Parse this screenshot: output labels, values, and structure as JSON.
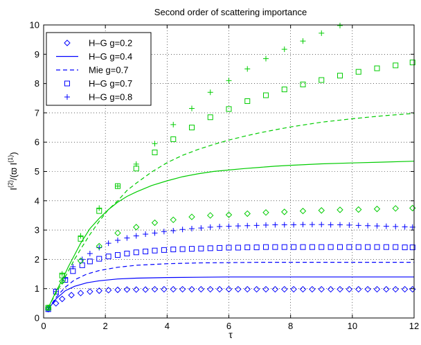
{
  "chart_data": {
    "type": "line",
    "title": "Second order of scattering importance",
    "xlabel": "τ",
    "ylabel": "I(2)/(ϖ I(1))",
    "xlim": [
      0,
      12
    ],
    "ylim": [
      0,
      10
    ],
    "xticks": [
      0,
      2,
      4,
      6,
      8,
      10,
      12
    ],
    "yticks": [
      0,
      1,
      2,
      3,
      4,
      5,
      6,
      7,
      8,
      9,
      10
    ],
    "grid": true,
    "legend_position": "top-left",
    "legend": [
      {
        "label": "H–G g=0.2",
        "marker": "diamond",
        "line": "none",
        "color": "#0000ff"
      },
      {
        "label": "H–G g=0.4",
        "marker": "none",
        "line": "solid",
        "color": "#0000ff"
      },
      {
        "label": "Mie g=0.7",
        "marker": "none",
        "line": "dashed",
        "color": "#0000ff"
      },
      {
        "label": "H–G g=0.7",
        "marker": "square",
        "line": "none",
        "color": "#0000ff"
      },
      {
        "label": "H–G g=0.8",
        "marker": "plus",
        "line": "none",
        "color": "#0000ff"
      }
    ],
    "series": [
      {
        "name": "H–G g=0.2",
        "group": "thin",
        "color": "#0000ff",
        "style": "diamond",
        "x": [
          0.15,
          0.4,
          0.6,
          0.9,
          1.2,
          1.5,
          1.8,
          2.1,
          2.4,
          2.7,
          3.0,
          3.3,
          3.6,
          3.9,
          4.2,
          4.5,
          4.8,
          5.1,
          5.4,
          5.7,
          6.0,
          6.3,
          6.6,
          6.9,
          7.2,
          7.5,
          7.8,
          8.1,
          8.4,
          8.7,
          9.0,
          9.3,
          9.6,
          9.9,
          10.2,
          10.5,
          10.8,
          11.1,
          11.4,
          11.7,
          11.95
        ],
        "y": [
          0.3,
          0.5,
          0.65,
          0.78,
          0.85,
          0.9,
          0.93,
          0.95,
          0.96,
          0.97,
          0.97,
          0.97,
          0.98,
          0.98,
          0.98,
          0.98,
          0.98,
          0.98,
          0.98,
          0.98,
          0.98,
          0.98,
          0.98,
          0.98,
          0.98,
          0.98,
          0.98,
          0.98,
          0.98,
          0.98,
          0.98,
          0.98,
          0.98,
          0.98,
          0.98,
          0.98,
          0.98,
          0.98,
          0.98,
          0.98,
          0.98
        ]
      },
      {
        "name": "H–G g=0.4",
        "group": "thin",
        "color": "#0000ff",
        "style": "solid",
        "x": [
          0.15,
          0.4,
          0.7,
          1.0,
          1.4,
          1.8,
          2.4,
          3.0,
          4.0,
          5.0,
          6.0,
          7.0,
          8.0,
          9.0,
          10.0,
          11.0,
          12.0
        ],
        "y": [
          0.3,
          0.65,
          0.93,
          1.08,
          1.2,
          1.27,
          1.33,
          1.36,
          1.38,
          1.39,
          1.4,
          1.4,
          1.4,
          1.4,
          1.4,
          1.4,
          1.4
        ]
      },
      {
        "name": "Mie g=0.7",
        "group": "thin",
        "color": "#0000ff",
        "style": "dashed",
        "x": [
          0.15,
          0.4,
          0.7,
          1.0,
          1.4,
          1.8,
          2.4,
          3.0,
          4.0,
          5.0,
          6.0,
          7.0,
          8.0,
          9.0,
          10.0,
          11.0,
          12.0
        ],
        "y": [
          0.3,
          0.7,
          1.05,
          1.3,
          1.5,
          1.62,
          1.73,
          1.8,
          1.85,
          1.88,
          1.89,
          1.9,
          1.9,
          1.9,
          1.9,
          1.9,
          1.9
        ]
      },
      {
        "name": "H–G g=0.7",
        "group": "thin",
        "color": "#0000ff",
        "style": "square",
        "x": [
          0.15,
          0.4,
          0.7,
          0.95,
          1.25,
          1.5,
          1.8,
          2.1,
          2.4,
          2.7,
          3.0,
          3.3,
          3.6,
          3.9,
          4.2,
          4.5,
          4.8,
          5.1,
          5.4,
          5.7,
          6.0,
          6.3,
          6.6,
          6.9,
          7.2,
          7.5,
          7.8,
          8.1,
          8.4,
          8.7,
          9.0,
          9.3,
          9.6,
          9.9,
          10.2,
          10.5,
          10.8,
          11.1,
          11.4,
          11.7,
          11.95
        ],
        "y": [
          0.3,
          0.9,
          1.3,
          1.6,
          1.8,
          1.93,
          2.02,
          2.1,
          2.15,
          2.2,
          2.24,
          2.27,
          2.3,
          2.32,
          2.34,
          2.35,
          2.36,
          2.37,
          2.38,
          2.39,
          2.4,
          2.4,
          2.41,
          2.41,
          2.42,
          2.42,
          2.42,
          2.42,
          2.42,
          2.42,
          2.42,
          2.42,
          2.42,
          2.42,
          2.42,
          2.42,
          2.42,
          2.42,
          2.42,
          2.41,
          2.41
        ]
      },
      {
        "name": "H–G g=0.8",
        "group": "thin",
        "color": "#0000ff",
        "style": "plus",
        "x": [
          0.15,
          0.4,
          0.7,
          0.95,
          1.25,
          1.5,
          1.8,
          2.1,
          2.4,
          2.7,
          3.0,
          3.3,
          3.6,
          3.9,
          4.2,
          4.5,
          4.8,
          5.1,
          5.4,
          5.7,
          6.0,
          6.3,
          6.6,
          6.9,
          7.2,
          7.5,
          7.8,
          8.1,
          8.4,
          8.7,
          9.0,
          9.3,
          9.6,
          9.9,
          10.2,
          10.5,
          10.8,
          11.1,
          11.4,
          11.7,
          11.95
        ],
        "y": [
          0.3,
          0.9,
          1.35,
          1.75,
          2.0,
          2.2,
          2.4,
          2.55,
          2.65,
          2.73,
          2.8,
          2.86,
          2.9,
          2.95,
          2.98,
          3.02,
          3.05,
          3.07,
          3.1,
          3.12,
          3.13,
          3.14,
          3.15,
          3.16,
          3.17,
          3.18,
          3.18,
          3.18,
          3.19,
          3.19,
          3.19,
          3.18,
          3.18,
          3.17,
          3.16,
          3.15,
          3.14,
          3.13,
          3.12,
          3.11,
          3.1
        ]
      },
      {
        "name": "H–G g=0.2",
        "group": "thick",
        "color": "#00cc00",
        "style": "diamond",
        "x": [
          0.15,
          0.6,
          1.2,
          1.8,
          2.4,
          3.0,
          3.6,
          4.2,
          4.8,
          5.4,
          6.0,
          6.6,
          7.2,
          7.8,
          8.4,
          9.0,
          9.6,
          10.2,
          10.8,
          11.4,
          11.95
        ],
        "y": [
          0.35,
          1.25,
          1.95,
          2.45,
          2.9,
          3.1,
          3.25,
          3.35,
          3.45,
          3.5,
          3.52,
          3.56,
          3.6,
          3.62,
          3.65,
          3.67,
          3.69,
          3.7,
          3.72,
          3.74,
          3.75
        ]
      },
      {
        "name": "H–G g=0.4",
        "group": "thick",
        "color": "#00cc00",
        "style": "solid",
        "x": [
          0.15,
          0.4,
          0.6,
          0.8,
          1.0,
          1.2,
          1.5,
          1.8,
          2.1,
          2.4,
          2.7,
          3.0,
          3.5,
          4.0,
          4.5,
          5.0,
          5.5,
          6.0,
          6.5,
          7.0,
          7.5,
          8.0,
          9.0,
          10.0,
          11.0,
          12.0
        ],
        "y": [
          0.35,
          0.9,
          1.3,
          1.75,
          2.15,
          2.55,
          3.05,
          3.4,
          3.7,
          3.95,
          4.15,
          4.3,
          4.52,
          4.68,
          4.82,
          4.92,
          5.0,
          5.05,
          5.1,
          5.14,
          5.18,
          5.21,
          5.26,
          5.29,
          5.32,
          5.35
        ]
      },
      {
        "name": "Mie g=0.7",
        "group": "thick",
        "color": "#00cc00",
        "style": "dashed",
        "x": [
          0.15,
          0.4,
          0.6,
          0.8,
          1.0,
          1.2,
          1.5,
          1.8,
          2.1,
          2.4,
          2.7,
          3.0,
          3.5,
          4.0,
          4.5,
          5.0,
          5.5,
          6.0,
          6.5,
          7.0,
          7.5,
          8.0,
          9.0,
          10.0,
          11.0,
          12.0
        ],
        "y": [
          0.35,
          0.85,
          1.2,
          1.6,
          2.0,
          2.35,
          2.85,
          3.3,
          3.7,
          4.0,
          4.35,
          4.6,
          4.98,
          5.3,
          5.55,
          5.75,
          5.92,
          6.07,
          6.2,
          6.32,
          6.42,
          6.52,
          6.68,
          6.8,
          6.9,
          6.98
        ]
      },
      {
        "name": "H–G g=0.7",
        "group": "thick",
        "color": "#00cc00",
        "style": "square",
        "x": [
          0.15,
          0.6,
          1.2,
          1.8,
          2.4,
          3.0,
          3.6,
          4.2,
          4.8,
          5.4,
          6.0,
          6.6,
          7.2,
          7.8,
          8.4,
          9.0,
          9.6,
          10.2,
          10.8,
          11.4,
          11.95
        ],
        "y": [
          0.35,
          1.45,
          2.7,
          3.65,
          4.5,
          5.1,
          5.65,
          6.1,
          6.5,
          6.85,
          7.13,
          7.4,
          7.6,
          7.8,
          7.97,
          8.12,
          8.27,
          8.4,
          8.52,
          8.62,
          8.72
        ]
      },
      {
        "name": "H–G g=0.8",
        "group": "thick",
        "color": "#00cc00",
        "style": "plus",
        "x": [
          0.15,
          0.6,
          1.2,
          1.8,
          2.4,
          3.0,
          3.6,
          4.2,
          4.8,
          5.4,
          6.0,
          6.6,
          7.2,
          7.8,
          8.4,
          9.0,
          9.6
        ],
        "y": [
          0.35,
          1.5,
          2.8,
          3.75,
          4.5,
          5.25,
          5.95,
          6.6,
          7.15,
          7.7,
          8.1,
          8.5,
          8.85,
          9.17,
          9.45,
          9.72,
          9.98
        ]
      }
    ]
  }
}
